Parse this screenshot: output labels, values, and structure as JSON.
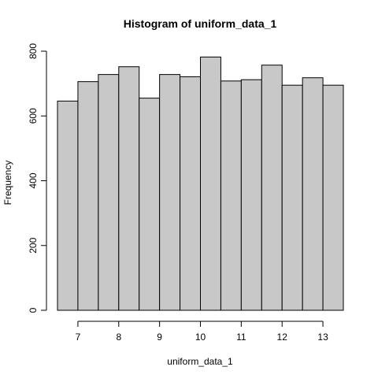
{
  "chart_data": {
    "type": "bar",
    "title": "Histogram of uniform_data_1",
    "xlabel": "uniform_data_1",
    "ylabel": "Frequency",
    "bins": [
      {
        "x0": 6.5,
        "x1": 7.0,
        "count": 646
      },
      {
        "x0": 7.0,
        "x1": 7.5,
        "count": 706
      },
      {
        "x0": 7.5,
        "x1": 8.0,
        "count": 728
      },
      {
        "x0": 8.0,
        "x1": 8.5,
        "count": 752
      },
      {
        "x0": 8.5,
        "x1": 9.0,
        "count": 655
      },
      {
        "x0": 9.0,
        "x1": 9.5,
        "count": 728
      },
      {
        "x0": 9.5,
        "x1": 10.0,
        "count": 721
      },
      {
        "x0": 10.0,
        "x1": 10.5,
        "count": 782
      },
      {
        "x0": 10.5,
        "x1": 11.0,
        "count": 708
      },
      {
        "x0": 11.0,
        "x1": 11.5,
        "count": 712
      },
      {
        "x0": 11.5,
        "x1": 12.0,
        "count": 757
      },
      {
        "x0": 12.0,
        "x1": 12.5,
        "count": 695
      },
      {
        "x0": 12.5,
        "x1": 13.0,
        "count": 718
      },
      {
        "x0": 13.0,
        "x1": 13.5,
        "count": 695
      }
    ],
    "xlim": [
      6.5,
      13.5
    ],
    "ylim": [
      0,
      800
    ],
    "x_ticks": [
      7,
      8,
      9,
      10,
      11,
      12,
      13
    ],
    "y_ticks": [
      0,
      200,
      400,
      600,
      800
    ],
    "x_tick_labels": [
      "7",
      "8",
      "9",
      "10",
      "11",
      "12",
      "13"
    ],
    "y_tick_labels": [
      "0",
      "200",
      "400",
      "600",
      "800"
    ],
    "bar_fill": "#c8c8c8",
    "bar_stroke": "#000000",
    "grid": false,
    "legend": "none"
  }
}
